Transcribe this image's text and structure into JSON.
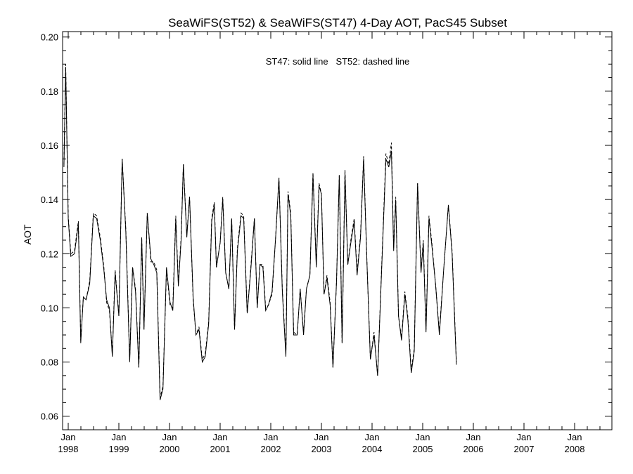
{
  "chart_data": {
    "type": "line",
    "title": "SeaWiFS(ST52) & SeaWiFS(ST47) 4-Day AOT, PacS45 Subset",
    "annotation": "ST47: solid line   ST52: dashed line",
    "xlabel": "",
    "ylabel": "AOT",
    "ylim": [
      0.055,
      0.202
    ],
    "xlim": [
      "1998-01-01",
      "2008-10-31"
    ],
    "y_ticks": [
      "0.06",
      "0.08",
      "0.10",
      "0.12",
      "0.14",
      "0.16",
      "0.18",
      "0.20"
    ],
    "x_ticks": [
      {
        "line1": "Jan",
        "line2": "1998"
      },
      {
        "line1": "Jan",
        "line2": "1999"
      },
      {
        "line1": "Jan",
        "line2": "2000"
      },
      {
        "line1": "Jan",
        "line2": "2001"
      },
      {
        "line1": "Jan",
        "line2": "2002"
      },
      {
        "line1": "Jan",
        "line2": "2003"
      },
      {
        "line1": "Jan",
        "line2": "2004"
      },
      {
        "line1": "Jan",
        "line2": "2005"
      },
      {
        "line1": "Jan",
        "line2": "2006"
      },
      {
        "line1": "Jan",
        "line2": "2007"
      },
      {
        "line1": "Jan",
        "line2": "2008"
      }
    ],
    "grid": false,
    "series": [
      {
        "name": "ST47",
        "style": "solid",
        "color": "#000000",
        "points": [
          [
            "1997-12-01",
            0.152
          ],
          [
            "1997-12-14",
            0.189
          ],
          [
            "1998-01-01",
            0.133
          ],
          [
            "1998-01-20",
            0.119
          ],
          [
            "1998-02-15",
            0.12
          ],
          [
            "1998-03-15",
            0.131
          ],
          [
            "1998-04-01",
            0.087
          ],
          [
            "1998-04-20",
            0.104
          ],
          [
            "1998-05-10",
            0.103
          ],
          [
            "1998-06-05",
            0.109
          ],
          [
            "1998-07-01",
            0.134
          ],
          [
            "1998-07-25",
            0.133
          ],
          [
            "1998-08-20",
            0.125
          ],
          [
            "1998-09-15",
            0.114
          ],
          [
            "1998-10-05",
            0.103
          ],
          [
            "1998-10-25",
            0.1
          ],
          [
            "1998-11-15",
            0.082
          ],
          [
            "1998-12-05",
            0.113
          ],
          [
            "1999-01-01",
            0.097
          ],
          [
            "1999-01-25",
            0.155
          ],
          [
            "1999-02-20",
            0.128
          ],
          [
            "1999-03-20",
            0.08
          ],
          [
            "1999-04-10",
            0.115
          ],
          [
            "1999-05-01",
            0.106
          ],
          [
            "1999-05-25",
            0.078
          ],
          [
            "1999-06-15",
            0.126
          ],
          [
            "1999-07-01",
            0.092
          ],
          [
            "1999-07-25",
            0.135
          ],
          [
            "1999-08-20",
            0.118
          ],
          [
            "1999-09-10",
            0.116
          ],
          [
            "1999-10-01",
            0.113
          ],
          [
            "1999-10-25",
            0.066
          ],
          [
            "1999-11-15",
            0.07
          ],
          [
            "1999-12-10",
            0.115
          ],
          [
            "2000-01-05",
            0.102
          ],
          [
            "2000-01-25",
            0.099
          ],
          [
            "2000-02-15",
            0.133
          ],
          [
            "2000-03-05",
            0.108
          ],
          [
            "2000-03-25",
            0.125
          ],
          [
            "2000-04-10",
            0.153
          ],
          [
            "2000-05-05",
            0.126
          ],
          [
            "2000-05-25",
            0.141
          ],
          [
            "2000-06-20",
            0.104
          ],
          [
            "2000-07-10",
            0.09
          ],
          [
            "2000-08-01",
            0.092
          ],
          [
            "2000-08-25",
            0.08
          ],
          [
            "2000-09-15",
            0.082
          ],
          [
            "2000-10-10",
            0.094
          ],
          [
            "2000-11-01",
            0.132
          ],
          [
            "2000-11-20",
            0.138
          ],
          [
            "2000-12-05",
            0.115
          ],
          [
            "2001-01-01",
            0.124
          ],
          [
            "2001-01-20",
            0.14
          ],
          [
            "2001-02-10",
            0.113
          ],
          [
            "2001-03-05",
            0.107
          ],
          [
            "2001-03-25",
            0.133
          ],
          [
            "2001-04-15",
            0.092
          ],
          [
            "2001-05-05",
            0.121
          ],
          [
            "2001-06-01",
            0.134
          ],
          [
            "2001-06-20",
            0.133
          ],
          [
            "2001-07-15",
            0.098
          ],
          [
            "2001-08-10",
            0.114
          ],
          [
            "2001-09-05",
            0.133
          ],
          [
            "2001-09-25",
            0.1
          ],
          [
            "2001-10-15",
            0.116
          ],
          [
            "2001-11-05",
            0.115
          ],
          [
            "2001-11-25",
            0.099
          ],
          [
            "2001-12-15",
            0.101
          ],
          [
            "2002-01-10",
            0.106
          ],
          [
            "2002-02-05",
            0.126
          ],
          [
            "2002-03-01",
            0.148
          ],
          [
            "2002-03-25",
            0.106
          ],
          [
            "2002-04-20",
            0.082
          ],
          [
            "2002-05-05",
            0.142
          ],
          [
            "2002-05-25",
            0.134
          ],
          [
            "2002-06-15",
            0.09
          ],
          [
            "2002-07-10",
            0.09
          ],
          [
            "2002-08-01",
            0.107
          ],
          [
            "2002-08-25",
            0.09
          ],
          [
            "2002-09-15",
            0.107
          ],
          [
            "2002-10-10",
            0.112
          ],
          [
            "2002-11-01",
            0.149
          ],
          [
            "2002-11-25",
            0.115
          ],
          [
            "2002-12-15",
            0.145
          ],
          [
            "2003-01-01",
            0.142
          ],
          [
            "2003-01-20",
            0.105
          ],
          [
            "2003-02-10",
            0.111
          ],
          [
            "2003-03-05",
            0.101
          ],
          [
            "2003-03-25",
            0.078
          ],
          [
            "2003-04-20",
            0.11
          ],
          [
            "2003-05-10",
            0.149
          ],
          [
            "2003-05-30",
            0.087
          ],
          [
            "2003-06-20",
            0.15
          ],
          [
            "2003-07-10",
            0.116
          ],
          [
            "2003-08-01",
            0.124
          ],
          [
            "2003-08-25",
            0.132
          ],
          [
            "2003-09-15",
            0.112
          ],
          [
            "2003-10-10",
            0.126
          ],
          [
            "2003-11-01",
            0.155
          ],
          [
            "2003-11-25",
            0.117
          ],
          [
            "2003-12-20",
            0.081
          ],
          [
            "2004-01-15",
            0.09
          ],
          [
            "2004-02-10",
            0.075
          ],
          [
            "2004-03-10",
            0.114
          ],
          [
            "2004-04-10",
            0.155
          ],
          [
            "2004-05-01",
            0.152
          ],
          [
            "2004-05-20",
            0.158
          ],
          [
            "2004-06-05",
            0.121
          ],
          [
            "2004-06-20",
            0.14
          ],
          [
            "2004-07-10",
            0.097
          ],
          [
            "2004-08-01",
            0.088
          ],
          [
            "2004-08-25",
            0.105
          ],
          [
            "2004-09-15",
            0.096
          ],
          [
            "2004-10-10",
            0.076
          ],
          [
            "2004-11-01",
            0.084
          ],
          [
            "2004-11-25",
            0.146
          ],
          [
            "2004-12-20",
            0.113
          ],
          [
            "2005-01-05",
            0.124
          ],
          [
            "2005-01-25",
            0.091
          ],
          [
            "2005-02-15",
            0.133
          ],
          [
            "2005-03-10",
            0.122
          ],
          [
            "2005-04-05",
            0.108
          ],
          [
            "2005-05-01",
            0.09
          ],
          [
            "2005-06-01",
            0.114
          ],
          [
            "2005-07-05",
            0.138
          ],
          [
            "2005-08-01",
            0.12
          ],
          [
            "2005-09-01",
            0.079
          ]
        ]
      },
      {
        "name": "ST52",
        "style": "dashed",
        "color": "#000000",
        "points": [
          [
            "1997-12-01",
            0.153
          ],
          [
            "1997-12-14",
            0.19
          ],
          [
            "1998-01-01",
            0.134
          ],
          [
            "1998-01-20",
            0.12
          ],
          [
            "1998-02-15",
            0.121
          ],
          [
            "1998-03-15",
            0.132
          ],
          [
            "1998-04-01",
            0.088
          ],
          [
            "1998-04-20",
            0.104
          ],
          [
            "1998-05-10",
            0.103
          ],
          [
            "1998-06-05",
            0.11
          ],
          [
            "1998-07-01",
            0.135
          ],
          [
            "1998-07-25",
            0.134
          ],
          [
            "1998-08-20",
            0.126
          ],
          [
            "1998-09-15",
            0.115
          ],
          [
            "1998-10-05",
            0.102
          ],
          [
            "1998-10-25",
            0.099
          ],
          [
            "1998-11-15",
            0.083
          ],
          [
            "1998-12-05",
            0.114
          ],
          [
            "1999-01-01",
            0.097
          ],
          [
            "1999-01-25",
            0.155
          ],
          [
            "1999-02-20",
            0.129
          ],
          [
            "1999-03-20",
            0.081
          ],
          [
            "1999-04-10",
            0.115
          ],
          [
            "1999-05-01",
            0.107
          ],
          [
            "1999-05-25",
            0.078
          ],
          [
            "1999-06-15",
            0.126
          ],
          [
            "1999-07-01",
            0.092
          ],
          [
            "1999-07-25",
            0.135
          ],
          [
            "1999-08-20",
            0.117
          ],
          [
            "1999-09-10",
            0.117
          ],
          [
            "1999-10-01",
            0.114
          ],
          [
            "1999-10-25",
            0.067
          ],
          [
            "1999-11-15",
            0.071
          ],
          [
            "1999-12-10",
            0.114
          ],
          [
            "2000-01-05",
            0.101
          ],
          [
            "2000-01-25",
            0.1
          ],
          [
            "2000-02-15",
            0.134
          ],
          [
            "2000-03-05",
            0.109
          ],
          [
            "2000-03-25",
            0.126
          ],
          [
            "2000-04-10",
            0.153
          ],
          [
            "2000-05-05",
            0.127
          ],
          [
            "2000-05-25",
            0.141
          ],
          [
            "2000-06-20",
            0.103
          ],
          [
            "2000-07-10",
            0.09
          ],
          [
            "2000-08-01",
            0.093
          ],
          [
            "2000-08-25",
            0.081
          ],
          [
            "2000-09-15",
            0.083
          ],
          [
            "2000-10-10",
            0.095
          ],
          [
            "2000-11-01",
            0.133
          ],
          [
            "2000-11-20",
            0.139
          ],
          [
            "2000-12-05",
            0.115
          ],
          [
            "2001-01-01",
            0.124
          ],
          [
            "2001-01-20",
            0.141
          ],
          [
            "2001-02-10",
            0.113
          ],
          [
            "2001-03-05",
            0.107
          ],
          [
            "2001-03-25",
            0.133
          ],
          [
            "2001-04-15",
            0.092
          ],
          [
            "2001-05-05",
            0.122
          ],
          [
            "2001-06-01",
            0.135
          ],
          [
            "2001-06-20",
            0.134
          ],
          [
            "2001-07-15",
            0.098
          ],
          [
            "2001-08-10",
            0.115
          ],
          [
            "2001-09-05",
            0.133
          ],
          [
            "2001-09-25",
            0.1
          ],
          [
            "2001-10-15",
            0.116
          ],
          [
            "2001-11-05",
            0.116
          ],
          [
            "2001-11-25",
            0.1
          ],
          [
            "2001-12-15",
            0.101
          ],
          [
            "2002-01-10",
            0.105
          ],
          [
            "2002-02-05",
            0.126
          ],
          [
            "2002-03-01",
            0.148
          ],
          [
            "2002-03-25",
            0.107
          ],
          [
            "2002-04-20",
            0.083
          ],
          [
            "2002-05-05",
            0.143
          ],
          [
            "2002-05-25",
            0.135
          ],
          [
            "2002-06-15",
            0.091
          ],
          [
            "2002-07-10",
            0.09
          ],
          [
            "2002-08-01",
            0.107
          ],
          [
            "2002-08-25",
            0.091
          ],
          [
            "2002-09-15",
            0.107
          ],
          [
            "2002-10-10",
            0.112
          ],
          [
            "2002-11-01",
            0.15
          ],
          [
            "2002-11-25",
            0.116
          ],
          [
            "2002-12-15",
            0.146
          ],
          [
            "2003-01-01",
            0.142
          ],
          [
            "2003-01-20",
            0.105
          ],
          [
            "2003-02-10",
            0.112
          ],
          [
            "2003-03-05",
            0.102
          ],
          [
            "2003-03-25",
            0.078
          ],
          [
            "2003-04-20",
            0.11
          ],
          [
            "2003-05-10",
            0.149
          ],
          [
            "2003-05-30",
            0.087
          ],
          [
            "2003-06-20",
            0.151
          ],
          [
            "2003-07-10",
            0.116
          ],
          [
            "2003-08-01",
            0.125
          ],
          [
            "2003-08-25",
            0.133
          ],
          [
            "2003-09-15",
            0.113
          ],
          [
            "2003-10-10",
            0.127
          ],
          [
            "2003-11-01",
            0.156
          ],
          [
            "2003-11-25",
            0.117
          ],
          [
            "2003-12-20",
            0.081
          ],
          [
            "2004-01-15",
            0.091
          ],
          [
            "2004-02-10",
            0.075
          ],
          [
            "2004-03-10",
            0.115
          ],
          [
            "2004-04-10",
            0.157
          ],
          [
            "2004-05-01",
            0.153
          ],
          [
            "2004-05-20",
            0.161
          ],
          [
            "2004-06-05",
            0.122
          ],
          [
            "2004-06-20",
            0.141
          ],
          [
            "2004-07-10",
            0.097
          ],
          [
            "2004-08-01",
            0.089
          ],
          [
            "2004-08-25",
            0.106
          ],
          [
            "2004-09-15",
            0.097
          ],
          [
            "2004-10-10",
            0.077
          ],
          [
            "2004-11-01",
            0.085
          ],
          [
            "2004-11-25",
            0.146
          ],
          [
            "2004-12-20",
            0.114
          ],
          [
            "2005-01-05",
            0.125
          ],
          [
            "2005-01-25",
            0.092
          ],
          [
            "2005-02-15",
            0.134
          ],
          [
            "2005-03-10",
            0.123
          ],
          [
            "2005-04-05",
            0.108
          ],
          [
            "2005-05-01",
            0.091
          ],
          [
            "2005-06-01",
            0.114
          ],
          [
            "2005-07-05",
            0.138
          ],
          [
            "2005-08-01",
            0.121
          ],
          [
            "2005-09-01",
            0.08
          ]
        ]
      }
    ]
  }
}
